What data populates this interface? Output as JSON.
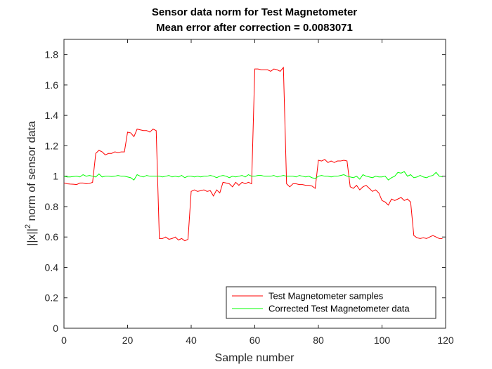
{
  "chart_data": {
    "type": "line",
    "title": "Sensor data norm for Test Magnetometer",
    "subtitle": "Mean error after correction = 0.0083071",
    "xlabel": "Sample number",
    "ylabel": "||x||² norm of sensor data",
    "ylabel_parts": {
      "norm": "||x||",
      "exponent": "2",
      "rest": " norm of sensor data"
    },
    "xlim": [
      0,
      120
    ],
    "ylim": [
      0,
      1.9
    ],
    "xticks": [
      "0",
      "20",
      "40",
      "60",
      "80",
      "100",
      "120"
    ],
    "yticks": [
      "0",
      "0.2",
      "0.4",
      "0.6",
      "0.8",
      "1",
      "1.2",
      "1.4",
      "1.6",
      "1.8"
    ],
    "grid": false,
    "legend_position": "bottom-right",
    "series": [
      {
        "name": "Test Magnetometer samples",
        "color": "#ff0000",
        "values": [
          0.956,
          0.95,
          0.948,
          0.947,
          0.945,
          0.955,
          0.955,
          0.95,
          0.952,
          0.96,
          1.15,
          1.17,
          1.16,
          1.14,
          1.15,
          1.15,
          1.16,
          1.155,
          1.16,
          1.16,
          1.29,
          1.285,
          1.26,
          1.31,
          1.305,
          1.3,
          1.3,
          1.29,
          1.31,
          1.3,
          0.59,
          0.59,
          0.6,
          0.585,
          0.59,
          0.6,
          0.58,
          0.59,
          0.575,
          0.585,
          0.9,
          0.91,
          0.9,
          0.905,
          0.91,
          0.9,
          0.905,
          0.87,
          0.91,
          0.89,
          0.96,
          0.955,
          0.95,
          0.93,
          0.96,
          0.94,
          0.96,
          0.95,
          0.96,
          0.95,
          1.705,
          1.705,
          1.7,
          1.7,
          1.7,
          1.69,
          1.705,
          1.7,
          1.69,
          1.715,
          0.95,
          0.93,
          0.95,
          0.95,
          0.945,
          0.945,
          0.94,
          0.94,
          0.935,
          0.92,
          1.105,
          1.1,
          1.11,
          1.09,
          1.1,
          1.09,
          1.1,
          1.1,
          1.105,
          1.1,
          0.93,
          0.92,
          0.94,
          0.91,
          0.93,
          0.94,
          0.92,
          0.9,
          0.91,
          0.89,
          0.84,
          0.83,
          0.81,
          0.85,
          0.84,
          0.85,
          0.86,
          0.84,
          0.85,
          0.83,
          0.61,
          0.595,
          0.59,
          0.595,
          0.59,
          0.6,
          0.61,
          0.6,
          0.59,
          0.59
        ]
      },
      {
        "name": "Corrected Test Magnetometer data",
        "color": "#00ff00",
        "values": [
          1.0,
          0.995,
          0.995,
          0.998,
          1.0,
          0.995,
          1.01,
          1.0,
          1.005,
          1.0,
          0.995,
          1.015,
          0.995,
          1.0,
          1.0,
          0.998,
          1.0,
          1.005,
          1.0,
          1.0,
          0.995,
          0.99,
          0.975,
          1.01,
          1.0,
          0.995,
          1.005,
          1.0,
          1.0,
          1.0,
          1.0,
          0.995,
          1.0,
          1.005,
          0.995,
          1.0,
          0.995,
          1.005,
          0.99,
          1.0,
          1.0,
          0.995,
          1.0,
          0.995,
          1.0,
          1.0,
          1.005,
          1.0,
          0.99,
          1.0,
          1.005,
          1.0,
          0.99,
          1.0,
          0.995,
          1.0,
          1.005,
          0.995,
          1.01,
          1.0,
          1.0,
          1.005,
          1.005,
          1.0,
          1.0,
          1.0,
          1.005,
          0.995,
          1.0,
          1.005,
          1.0,
          1.0,
          1.0,
          0.995,
          1.005,
          1.0,
          0.995,
          1.0,
          0.99,
          0.985,
          1.0,
          1.005,
          1.0,
          1.0,
          0.995,
          1.0,
          1.0,
          1.005,
          1.01,
          1.0,
          0.995,
          0.99,
          1.0,
          0.98,
          1.01,
          1.0,
          0.995,
          0.99,
          1.0,
          0.995,
          0.995,
          1.0,
          0.975,
          0.99,
          1.0,
          1.025,
          1.02,
          1.03,
          1.0,
          1.01,
          0.99,
          0.995,
          1.005,
          0.995,
          0.99,
          1.0,
          1.005,
          1.025,
          1.0,
          0.995
        ]
      }
    ]
  }
}
